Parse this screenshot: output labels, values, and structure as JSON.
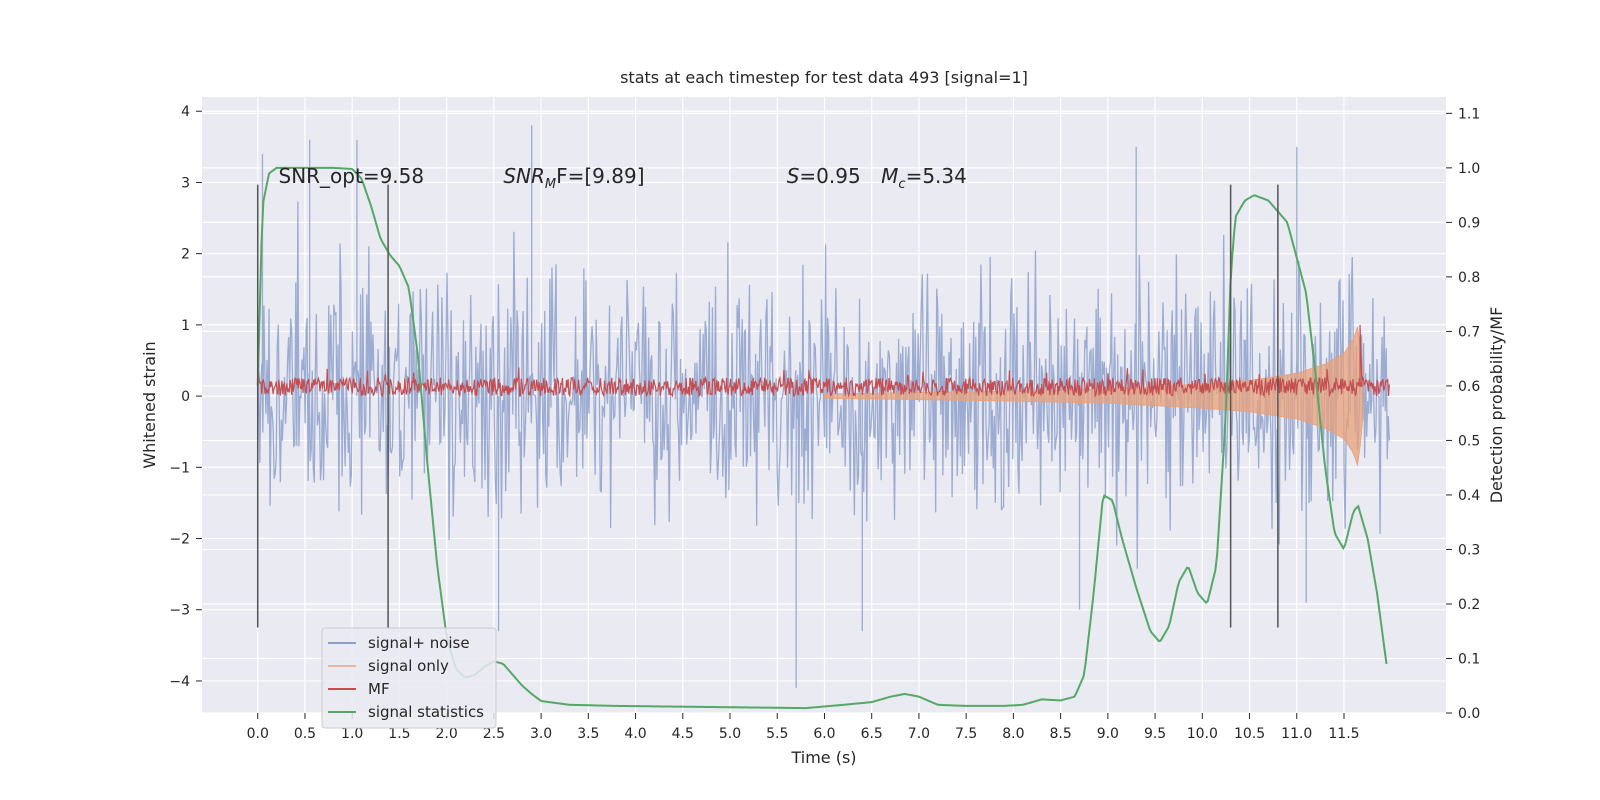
{
  "chart_data": {
    "type": "line",
    "title": "stats at each timestep for test data 493 [signal=1]",
    "xlabel": "Time (s)",
    "ylabel": "Whitened strain",
    "ylabel_right": "Detection probability/MF",
    "xlim": [
      -0.59,
      12.58
    ],
    "ylim": [
      -4.45,
      4.2
    ],
    "ylim_right": [
      0,
      1.13
    ],
    "x_ticks": [
      0.0,
      0.5,
      1.0,
      1.5,
      2.0,
      2.5,
      3.0,
      3.5,
      4.0,
      4.5,
      5.0,
      5.5,
      6.0,
      6.5,
      7.0,
      7.5,
      8.0,
      8.5,
      9.0,
      9.5,
      10.0,
      10.5,
      11.0,
      11.5
    ],
    "x_tick_labels": [
      "0.0",
      "0.5",
      "1.0",
      "1.5",
      "2.0",
      "2.5",
      "3.0",
      "3.5",
      "4.0",
      "4.5",
      "5.0",
      "5.5",
      "6.0",
      "6.5",
      "7.0",
      "7.5",
      "8.0",
      "8.5",
      "9.0",
      "9.5",
      "10.0",
      "10.5",
      "11.0",
      "11.5"
    ],
    "y_ticks": [
      -4,
      -3,
      -2,
      -1,
      0,
      1,
      2,
      3,
      4
    ],
    "y_tick_labels": [
      "−4",
      "−3",
      "−2",
      "−1",
      "0",
      "1",
      "2",
      "3",
      "4"
    ],
    "y_right_ticks": [
      0.0,
      0.1,
      0.2,
      0.3,
      0.4,
      0.5,
      0.6,
      0.7,
      0.8,
      0.9,
      1.0,
      1.1
    ],
    "y_right_tick_labels": [
      "0.0",
      "0.1",
      "0.2",
      "0.3",
      "0.4",
      "0.5",
      "0.6",
      "0.7",
      "0.8",
      "0.9",
      "1.0",
      "1.1"
    ],
    "grid": true,
    "legend_position": "lower-left",
    "vertical_lines_x": [
      0.0,
      1.38,
      10.3,
      10.8
    ],
    "vertical_lines_yrange": [
      -3.25,
      2.97
    ],
    "annotations": {
      "snr_opt": "SNR_opt=9.58",
      "snr_mf_name": "SNR",
      "snr_mf_sub": "M",
      "snr_mf_rest": "F=[9.89]",
      "s_name": "S",
      "s_rest": "=0.95",
      "mc_name": "M",
      "mc_sub": "c",
      "mc_rest": "=5.34"
    },
    "series": [
      {
        "name": "signal+ noise",
        "color": "#8da0cb",
        "axis": "left",
        "kind": "noise_band",
        "x_range": [
          0.0,
          11.98
        ],
        "typical_amplitude": 1.8,
        "peaks": [
          [
            0.05,
            3.4
          ],
          [
            0.55,
            3.6
          ],
          [
            1.05,
            3.6
          ],
          [
            2.9,
            3.8
          ],
          [
            9.3,
            3.5
          ],
          [
            11.0,
            3.5
          ],
          [
            5.7,
            -4.1
          ],
          [
            6.4,
            -3.3
          ],
          [
            2.55,
            -3.3
          ],
          [
            8.7,
            -3.0
          ],
          [
            11.1,
            -2.9
          ]
        ]
      },
      {
        "name": "signal only",
        "color": "#e8a07a",
        "axis": "left",
        "kind": "chirp_envelope",
        "x": [
          6.0,
          7.0,
          8.0,
          9.0,
          10.0,
          10.5,
          11.0,
          11.3,
          11.5,
          11.6,
          11.65,
          11.7
        ],
        "values": [
          0.03,
          0.05,
          0.07,
          0.1,
          0.17,
          0.22,
          0.32,
          0.45,
          0.6,
          0.8,
          1.0,
          0.3
        ]
      },
      {
        "name": "MF",
        "color": "#c44e52",
        "axis": "left",
        "kind": "mf_band",
        "x_range": [
          0.0,
          11.98
        ],
        "baseline": 0.13,
        "amplitude": 0.13,
        "spike": [
          11.67,
          1.0
        ]
      },
      {
        "name": "signal statistics",
        "color": "#55a868",
        "axis": "right",
        "x": [
          0.0,
          0.05,
          0.12,
          0.2,
          0.3,
          0.5,
          0.8,
          1.0,
          1.1,
          1.2,
          1.3,
          1.4,
          1.5,
          1.6,
          1.7,
          1.8,
          1.9,
          2.0,
          2.1,
          2.2,
          2.3,
          2.4,
          2.5,
          2.6,
          2.7,
          2.8,
          2.9,
          3.0,
          3.3,
          3.8,
          4.3,
          4.8,
          5.3,
          5.8,
          6.2,
          6.5,
          6.7,
          6.85,
          7.0,
          7.2,
          7.5,
          7.9,
          8.1,
          8.3,
          8.5,
          8.65,
          8.75,
          8.85,
          8.95,
          9.05,
          9.15,
          9.3,
          9.45,
          9.55,
          9.65,
          9.75,
          9.85,
          9.95,
          10.05,
          10.15,
          10.25,
          10.3,
          10.35,
          10.45,
          10.55,
          10.7,
          10.9,
          11.1,
          11.2,
          11.3,
          11.4,
          11.5,
          11.6,
          11.65,
          11.75,
          11.85,
          11.95
        ],
        "values": [
          0.6,
          0.93,
          0.99,
          1.0,
          1.0,
          1.0,
          1.0,
          0.998,
          0.98,
          0.93,
          0.87,
          0.84,
          0.82,
          0.78,
          0.65,
          0.45,
          0.27,
          0.14,
          0.08,
          0.065,
          0.07,
          0.085,
          0.095,
          0.09,
          0.07,
          0.05,
          0.035,
          0.022,
          0.015,
          0.013,
          0.012,
          0.011,
          0.01,
          0.009,
          0.015,
          0.02,
          0.03,
          0.035,
          0.03,
          0.015,
          0.013,
          0.013,
          0.015,
          0.025,
          0.023,
          0.03,
          0.07,
          0.22,
          0.4,
          0.39,
          0.32,
          0.23,
          0.15,
          0.13,
          0.16,
          0.24,
          0.27,
          0.22,
          0.2,
          0.27,
          0.55,
          0.8,
          0.91,
          0.94,
          0.95,
          0.94,
          0.9,
          0.77,
          0.62,
          0.45,
          0.33,
          0.3,
          0.37,
          0.38,
          0.32,
          0.22,
          0.09
        ]
      }
    ]
  }
}
